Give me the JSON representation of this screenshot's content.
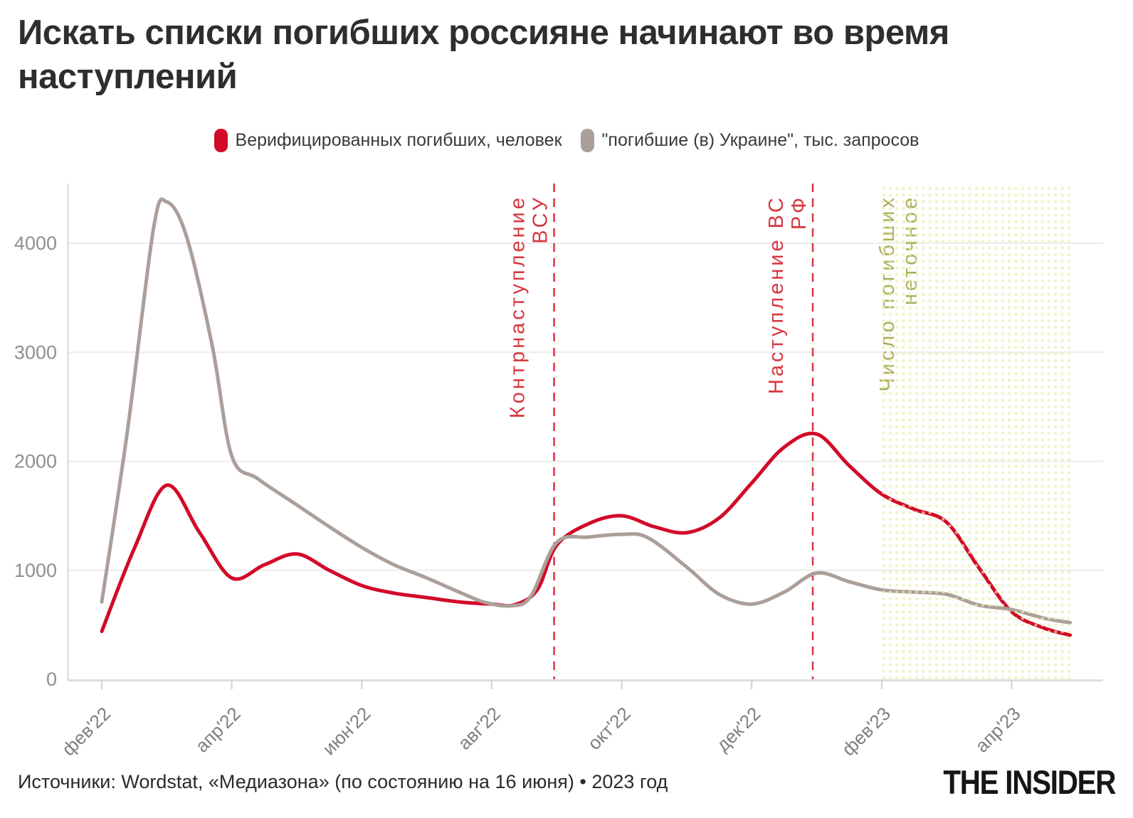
{
  "title": "Искать списки погибших россияне начинают во время наступлений",
  "source_line": "Источники: Wordstat, «Медиазона» (по состоянию на 16 июня) • 2023 год",
  "logo": "THE INSIDER",
  "colors": {
    "title_text": "#2e2e2e",
    "red_series": "#d20a28",
    "gray_series": "#ab9f99",
    "dashed_event_line": "#d7363f",
    "region_dots": "#eaeeaa",
    "region_label": "#a9ad5a",
    "gridline": "#ececec",
    "axis_line": "#d9d9d9",
    "axis_text": "#8f8f8f"
  },
  "chart_data": {
    "type": "line",
    "title": "Искать списки погибших россияне начинают во время наступлений",
    "legend_position": "top",
    "grid": "horizontal",
    "x_unit": "months since Feb 2022",
    "xlim": [
      0,
      15
    ],
    "ylim": [
      0,
      4550
    ],
    "y_ticks": [
      0,
      1000,
      2000,
      3000,
      4000
    ],
    "x_ticks": [
      {
        "m": 0,
        "label": "фев'22"
      },
      {
        "m": 2,
        "label": "апр'22"
      },
      {
        "m": 4,
        "label": "июн'22"
      },
      {
        "m": 6,
        "label": "авг'22"
      },
      {
        "m": 8,
        "label": "окт'22"
      },
      {
        "m": 10,
        "label": "дек'22"
      },
      {
        "m": 12,
        "label": "фев'23"
      },
      {
        "m": 14,
        "label": "апр'23"
      }
    ],
    "series": [
      {
        "name": "Верифицированных погибших, человек",
        "color": "#d20a28",
        "points": [
          [
            0,
            440
          ],
          [
            0.5,
            1200
          ],
          [
            1,
            1780
          ],
          [
            1.5,
            1350
          ],
          [
            2,
            930
          ],
          [
            2.5,
            1050
          ],
          [
            3,
            1150
          ],
          [
            3.5,
            1000
          ],
          [
            4,
            860
          ],
          [
            4.5,
            790
          ],
          [
            5,
            750
          ],
          [
            5.5,
            710
          ],
          [
            6,
            690
          ],
          [
            6.35,
            683
          ],
          [
            6.7,
            820
          ],
          [
            7,
            1230
          ],
          [
            7.5,
            1430
          ],
          [
            8,
            1500
          ],
          [
            8.5,
            1400
          ],
          [
            9,
            1345
          ],
          [
            9.5,
            1480
          ],
          [
            10,
            1800
          ],
          [
            10.5,
            2130
          ],
          [
            11,
            2250
          ],
          [
            11.5,
            1960
          ],
          [
            12,
            1700
          ],
          [
            12.5,
            1560
          ],
          [
            13,
            1440
          ],
          [
            13.5,
            1020
          ],
          [
            14,
            620
          ],
          [
            14.5,
            470
          ],
          [
            14.9,
            405
          ]
        ]
      },
      {
        "name": "\"погибшие (в) Украине\", тыс. запросов",
        "color": "#ab9f99",
        "points": [
          [
            0,
            710
          ],
          [
            0.4,
            2300
          ],
          [
            0.8,
            4150
          ],
          [
            1,
            4380
          ],
          [
            1.3,
            4070
          ],
          [
            1.7,
            3060
          ],
          [
            2,
            2050
          ],
          [
            2.4,
            1840
          ],
          [
            3,
            1600
          ],
          [
            3.5,
            1400
          ],
          [
            4,
            1210
          ],
          [
            4.5,
            1050
          ],
          [
            5,
            930
          ],
          [
            5.5,
            800
          ],
          [
            5.9,
            705
          ],
          [
            6.3,
            675
          ],
          [
            6.6,
            760
          ],
          [
            7,
            1255
          ],
          [
            7.5,
            1305
          ],
          [
            8,
            1330
          ],
          [
            8.4,
            1300
          ],
          [
            9,
            1030
          ],
          [
            9.5,
            780
          ],
          [
            10,
            690
          ],
          [
            10.5,
            800
          ],
          [
            11,
            975
          ],
          [
            11.5,
            895
          ],
          [
            12,
            820
          ],
          [
            12.5,
            800
          ],
          [
            13,
            780
          ],
          [
            13.5,
            680
          ],
          [
            14,
            640
          ],
          [
            14.5,
            560
          ],
          [
            14.9,
            520
          ]
        ]
      }
    ],
    "annotations": {
      "vline_color": "#d7363f",
      "vlines": [
        {
          "m": 6.96,
          "label_lines": [
            "Контрнаступление",
            "ВСУ"
          ]
        },
        {
          "m": 10.94,
          "label_lines": [
            "Наступление ВС",
            "РФ"
          ]
        }
      ],
      "region": {
        "m_start": 11.96,
        "m_end": 14.92,
        "dot_color": "#eaeeaa",
        "label_color": "#a9ad5a",
        "label_lines": [
          "Число погибших",
          "неточное"
        ]
      }
    }
  }
}
